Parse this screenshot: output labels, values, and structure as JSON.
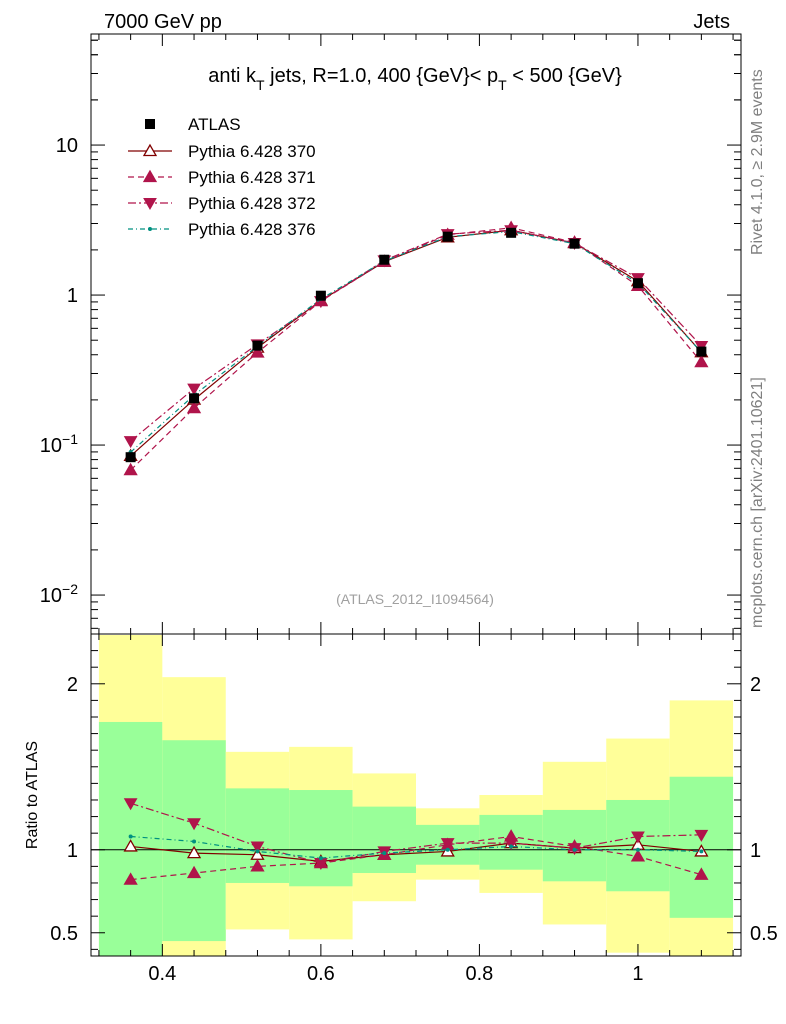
{
  "header": {
    "energy_label": "7000 GeV pp",
    "category_label": "Jets"
  },
  "side_labels": {
    "rivet": "Rivet 4.1.0, ≥ 2.9M events",
    "mcplots": "mcplots.cern.ch [arXiv:2401.10621]"
  },
  "chart_data": {
    "type": "line",
    "title": "anti k_T jets, R=1.0,  400 {GeV}< p_T < 500 {GeV}",
    "title_parts": {
      "prefix": "anti k",
      "sub1": "T",
      "middle": " jets, R=1.0,  400 {GeV}< p",
      "sub2": "T",
      "suffix": " < 500 {GeV}"
    },
    "analysis_label": "(ATLAS_2012_I1094564)",
    "x": [
      0.36,
      0.44,
      0.52,
      0.6,
      0.68,
      0.76,
      0.84,
      0.92,
      1.0,
      1.08
    ],
    "bin_edges": [
      0.32,
      0.4,
      0.48,
      0.56,
      0.64,
      0.72,
      0.8,
      0.88,
      0.96,
      1.04,
      1.12
    ],
    "xlim": [
      0.31,
      1.13
    ],
    "xticks": [
      "0.4",
      "0.6",
      "0.8",
      "1"
    ],
    "xtick_values": [
      0.4,
      0.6,
      0.8,
      1.0
    ],
    "main_ylim": [
      0.0055,
      55
    ],
    "main_yscale": "log",
    "main_yticks": [
      {
        "value": 10,
        "base": "10",
        "exp": ""
      },
      {
        "value": 1,
        "base": "1",
        "exp": ""
      },
      {
        "value": 0.1,
        "base": "10",
        "exp": "−1"
      },
      {
        "value": 0.01,
        "base": "10",
        "exp": "−2"
      }
    ],
    "ratio_ylim": [
      0.36,
      2.3
    ],
    "ratio_ylabel": "Ratio to ATLAS",
    "ratio_yticks": [
      {
        "value": 2,
        "label": "2"
      },
      {
        "value": 1,
        "label": "1"
      },
      {
        "value": 0.5,
        "label": "0.5"
      }
    ],
    "data": {
      "name": "ATLAS",
      "values": [
        0.083,
        0.205,
        0.46,
        0.99,
        1.72,
        2.45,
        2.6,
        2.2,
        1.2,
        0.42
      ]
    },
    "bands": {
      "inner_low": [
        0.34,
        0.45,
        0.8,
        0.78,
        0.86,
        0.91,
        0.88,
        0.81,
        0.75,
        0.59
      ],
      "inner_high": [
        1.77,
        1.66,
        1.37,
        1.36,
        1.26,
        1.15,
        1.21,
        1.24,
        1.3,
        1.44
      ],
      "outer_low": [
        0.3,
        0.3,
        0.52,
        0.46,
        0.69,
        0.82,
        0.74,
        0.55,
        0.38,
        0.34
      ],
      "outer_high": [
        2.3,
        2.04,
        1.59,
        1.62,
        1.46,
        1.25,
        1.33,
        1.53,
        1.67,
        1.9
      ]
    },
    "series": [
      {
        "name": "Pythia 6.428 370",
        "color": "#800000",
        "marker": "triangle-up-open",
        "dash": "",
        "ratio": [
          1.02,
          0.98,
          0.97,
          0.93,
          0.97,
          0.99,
          1.04,
          1.01,
          1.03,
          0.99
        ]
      },
      {
        "name": "Pythia 6.428 371",
        "color": "#b0144b",
        "marker": "triangle-up-filled",
        "dash": "6,4",
        "ratio": [
          0.82,
          0.86,
          0.9,
          0.92,
          0.97,
          1.03,
          1.08,
          1.02,
          0.96,
          0.85
        ]
      },
      {
        "name": "Pythia 6.428 372",
        "color": "#b0144b",
        "marker": "triangle-down-filled",
        "dash": "8,3,2,3",
        "ratio": [
          1.28,
          1.16,
          1.02,
          0.92,
          0.99,
          1.04,
          1.04,
          1.01,
          1.08,
          1.09
        ]
      },
      {
        "name": "Pythia 6.428 376",
        "color": "#009080",
        "marker": "dot",
        "dash": "5,3,1,3",
        "ratio": [
          1.08,
          1.05,
          0.99,
          0.95,
          0.98,
          1.0,
          1.02,
          1.0,
          1.0,
          0.99
        ]
      }
    ]
  }
}
